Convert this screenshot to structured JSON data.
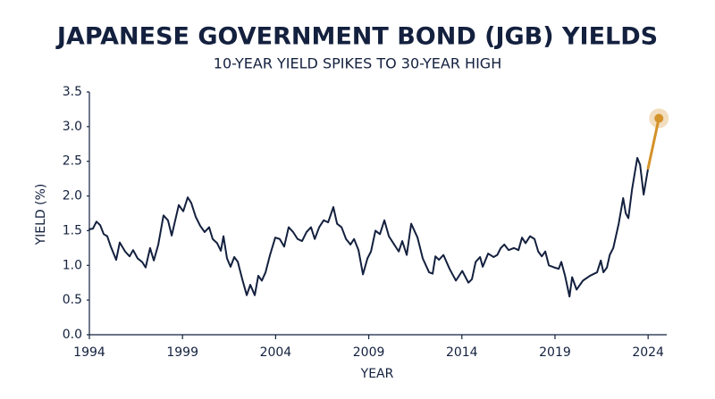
{
  "chart_data": {
    "type": "line",
    "title": "JAPANESE GOVERNMENT BOND (JGB) YIELDS",
    "subtitle": "10-YEAR YIELD SPIKES TO 30-YEAR HIGH",
    "x_label": "YEAR",
    "y_label": "YIELD (%)",
    "xlim": [
      1994,
      2025
    ],
    "xticks": [
      1994,
      1999,
      2004,
      2009,
      2014,
      2019,
      2024
    ],
    "ylim": [
      0,
      3.5
    ],
    "yticks": [
      {
        "value": 0,
        "label": "0.0"
      },
      0.5,
      {
        "value": 1,
        "label": "1.0"
      },
      1.5,
      {
        "value": 2,
        "label": "2.0"
      },
      2.5,
      {
        "value": 3,
        "label": "3.0"
      },
      3.5
    ],
    "grid": false,
    "series": [
      {
        "color": "#13203e",
        "x": [
          1994.0,
          1994.19,
          1994.38,
          1994.58,
          1994.77,
          1994.96,
          1995.15,
          1995.44,
          1995.63,
          1995.92,
          1996.16,
          1996.35,
          1996.59,
          1996.83,
          1997.02,
          1997.26,
          1997.46,
          1997.7,
          1997.98,
          1998.22,
          1998.42,
          1998.8,
          1999.04,
          1999.28,
          1999.47,
          1999.71,
          1999.95,
          2000.19,
          2000.43,
          2000.62,
          2000.86,
          2001.06,
          2001.2,
          2001.39,
          2001.58,
          2001.78,
          2001.97,
          2002.21,
          2002.45,
          2002.64,
          2002.88,
          2003.07,
          2003.26,
          2003.46,
          2003.7,
          2003.98,
          2004.22,
          2004.46,
          2004.7,
          2004.94,
          2005.18,
          2005.42,
          2005.66,
          2005.9,
          2006.1,
          2006.34,
          2006.58,
          2006.82,
          2007.1,
          2007.3,
          2007.54,
          2007.78,
          2008.02,
          2008.21,
          2008.45,
          2008.69,
          2008.93,
          2009.12,
          2009.36,
          2009.6,
          2009.84,
          2010.08,
          2010.32,
          2010.61,
          2010.8,
          2011.04,
          2011.28,
          2011.62,
          2011.9,
          2012.24,
          2012.43,
          2012.58,
          2012.77,
          2013.01,
          2013.34,
          2013.68,
          2014.02,
          2014.35,
          2014.54,
          2014.74,
          2014.98,
          2015.12,
          2015.41,
          2015.7,
          2015.9,
          2016.09,
          2016.28,
          2016.51,
          2016.8,
          2017.04,
          2017.23,
          2017.42,
          2017.66,
          2017.9,
          2018.1,
          2018.29,
          2018.48,
          2018.67,
          2018.96,
          2019.2,
          2019.34,
          2019.54,
          2019.78,
          2019.92,
          2020.16,
          2020.5,
          2020.88,
          2021.26,
          2021.46,
          2021.6,
          2021.79,
          2021.94,
          2022.13,
          2022.42,
          2022.66,
          2022.8,
          2022.94,
          2023.14,
          2023.42,
          2023.57,
          2023.76,
          2024.0
        ],
        "values": [
          1.52,
          1.53,
          1.63,
          1.58,
          1.45,
          1.42,
          1.27,
          1.08,
          1.33,
          1.2,
          1.13,
          1.22,
          1.1,
          1.05,
          0.97,
          1.25,
          1.07,
          1.3,
          1.72,
          1.65,
          1.43,
          1.87,
          1.78,
          1.98,
          1.9,
          1.7,
          1.57,
          1.48,
          1.55,
          1.38,
          1.32,
          1.21,
          1.42,
          1.1,
          0.98,
          1.12,
          1.05,
          0.8,
          0.57,
          0.72,
          0.57,
          0.85,
          0.78,
          0.9,
          1.15,
          1.4,
          1.38,
          1.27,
          1.55,
          1.48,
          1.38,
          1.35,
          1.48,
          1.55,
          1.38,
          1.55,
          1.65,
          1.62,
          1.84,
          1.6,
          1.55,
          1.38,
          1.3,
          1.38,
          1.22,
          0.87,
          1.1,
          1.2,
          1.5,
          1.45,
          1.65,
          1.42,
          1.32,
          1.2,
          1.35,
          1.15,
          1.6,
          1.4,
          1.1,
          0.9,
          0.88,
          1.13,
          1.08,
          1.15,
          0.95,
          0.78,
          0.92,
          0.75,
          0.8,
          1.05,
          1.12,
          0.98,
          1.17,
          1.12,
          1.15,
          1.25,
          1.3,
          1.22,
          1.25,
          1.22,
          1.4,
          1.32,
          1.42,
          1.38,
          1.2,
          1.13,
          1.2,
          1.0,
          0.97,
          0.95,
          1.05,
          0.85,
          0.55,
          0.83,
          0.65,
          0.78,
          0.85,
          0.9,
          1.07,
          0.9,
          0.97,
          1.15,
          1.25,
          1.6,
          1.97,
          1.75,
          1.68,
          2.1,
          2.55,
          2.45,
          2.02,
          2.4
        ]
      },
      {
        "color": "#d4922a",
        "highlight_end": true,
        "x": [
          2024.0,
          2024.58
        ],
        "values": [
          2.4,
          3.12
        ]
      }
    ]
  }
}
